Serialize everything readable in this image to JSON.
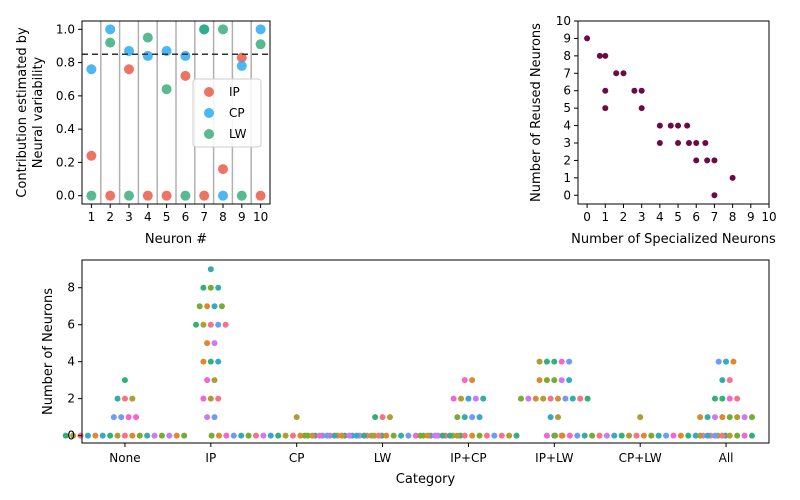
{
  "chart_data": [
    {
      "type": "scatter",
      "xlabel": "Neuron #",
      "ylabel_lines": [
        "Contribution estimated by",
        "Neural variability"
      ],
      "xlim": [
        0.5,
        10.5
      ],
      "ylim": [
        -0.05,
        1.05
      ],
      "xticks": [
        1,
        2,
        3,
        4,
        5,
        6,
        7,
        8,
        9,
        10
      ],
      "yticks": [
        0.0,
        0.2,
        0.4,
        0.6,
        0.8,
        1.0
      ],
      "threshold": 0.85,
      "series": [
        {
          "name": "IP",
          "color": "#e8513f",
          "x": [
            1,
            2,
            3,
            4,
            5,
            6,
            7,
            8,
            9,
            10
          ],
          "y": [
            0.24,
            0.0,
            0.76,
            0.0,
            0.0,
            0.72,
            0.0,
            0.16,
            0.83,
            0.0
          ]
        },
        {
          "name": "CP",
          "color": "#1ea5f0",
          "x": [
            1,
            2,
            3,
            4,
            5,
            6,
            7,
            8,
            9,
            10
          ],
          "y": [
            0.76,
            1.0,
            0.87,
            0.84,
            0.87,
            0.84,
            1.0,
            0.0,
            0.78,
            1.0
          ]
        },
        {
          "name": "LW",
          "color": "#2ea877",
          "x": [
            1,
            2,
            3,
            4,
            5,
            6,
            7,
            8,
            9,
            10
          ],
          "y": [
            0.0,
            0.92,
            0.0,
            0.95,
            0.64,
            0.0,
            1.0,
            1.0,
            0.0,
            0.91
          ]
        }
      ],
      "legend_position": "center-right"
    },
    {
      "type": "scatter",
      "xlabel": "Number of Specialized Neurons",
      "ylabel": "Number of Reused Neurons",
      "xlim": [
        -0.5,
        10
      ],
      "ylim": [
        -0.5,
        10
      ],
      "xticks": [
        0,
        1,
        2,
        3,
        4,
        5,
        6,
        7,
        8,
        9,
        10
      ],
      "yticks": [
        0,
        1,
        2,
        3,
        4,
        5,
        6,
        7,
        8,
        9,
        10
      ],
      "color": "#6b0a45",
      "points": [
        [
          0,
          9
        ],
        [
          0.7,
          8
        ],
        [
          1,
          8
        ],
        [
          1,
          6
        ],
        [
          1,
          5
        ],
        [
          1.6,
          7
        ],
        [
          2,
          7
        ],
        [
          2.6,
          6
        ],
        [
          3,
          6
        ],
        [
          3,
          5
        ],
        [
          4,
          4
        ],
        [
          4,
          3
        ],
        [
          4.6,
          4
        ],
        [
          5,
          4
        ],
        [
          5,
          3
        ],
        [
          5.5,
          4
        ],
        [
          5.6,
          3
        ],
        [
          6,
          3
        ],
        [
          6,
          2
        ],
        [
          6.5,
          3
        ],
        [
          6.6,
          2
        ],
        [
          7,
          2
        ],
        [
          7,
          0
        ],
        [
          8,
          1
        ]
      ]
    },
    {
      "type": "swarm",
      "xlabel": "Category",
      "ylabel": "Number of Neurons",
      "categories": [
        "None",
        "IP",
        "CP",
        "LW",
        "IP+CP",
        "IP+LW",
        "CP+LW",
        "All"
      ],
      "ylim": [
        -0.4,
        9.5
      ],
      "yticks": [
        0,
        2,
        4,
        6,
        8
      ],
      "palette": [
        "#f77189",
        "#dc8932",
        "#ae9d31",
        "#77ab31",
        "#33b07a",
        "#36ada4",
        "#38a9c5",
        "#6e9bf4",
        "#cc7af4",
        "#f565cc"
      ],
      "values": [
        [
          0,
          0,
          0,
          0,
          0,
          0,
          0,
          1,
          0,
          1,
          2,
          0,
          2,
          0,
          3,
          2,
          0,
          1,
          0,
          1,
          0,
          0,
          0,
          0,
          0
        ],
        [
          6,
          7,
          2,
          8,
          4,
          8,
          7,
          6,
          1,
          3,
          2,
          5,
          6,
          7,
          8,
          9,
          4,
          1,
          5,
          2,
          6,
          4,
          3,
          7,
          6
        ],
        [
          0,
          0,
          0,
          0,
          0,
          0,
          0,
          0,
          0,
          0,
          0,
          0,
          1,
          0,
          0,
          0,
          0,
          0,
          0,
          0,
          0,
          0,
          0,
          0,
          0
        ],
        [
          0,
          0,
          0,
          0,
          0,
          0,
          0,
          0,
          0,
          0,
          1,
          0,
          1,
          0,
          1,
          0,
          0,
          0,
          0,
          0,
          0,
          0,
          0,
          0,
          0
        ],
        [
          0,
          0,
          0,
          0,
          0,
          1,
          2,
          1,
          2,
          3,
          0,
          3,
          2,
          1,
          0,
          2,
          1,
          0,
          0,
          2,
          0,
          0,
          0,
          0,
          0
        ],
        [
          2,
          2,
          2,
          3,
          4,
          0,
          1,
          2,
          3,
          4,
          0,
          2,
          1,
          3,
          4,
          2,
          3,
          4,
          2,
          0,
          2,
          3,
          4,
          2,
          2
        ],
        [
          0,
          0,
          0,
          0,
          0,
          0,
          0,
          0,
          0,
          0,
          0,
          0,
          1,
          0,
          0,
          0,
          0,
          0,
          0,
          0,
          0,
          0,
          0,
          0,
          0
        ],
        [
          0,
          1,
          0,
          1,
          2,
          3,
          4,
          0,
          1,
          2,
          3,
          4,
          1,
          0,
          2,
          1,
          0,
          4,
          1,
          0,
          2,
          1,
          0,
          1,
          0
        ]
      ]
    }
  ]
}
